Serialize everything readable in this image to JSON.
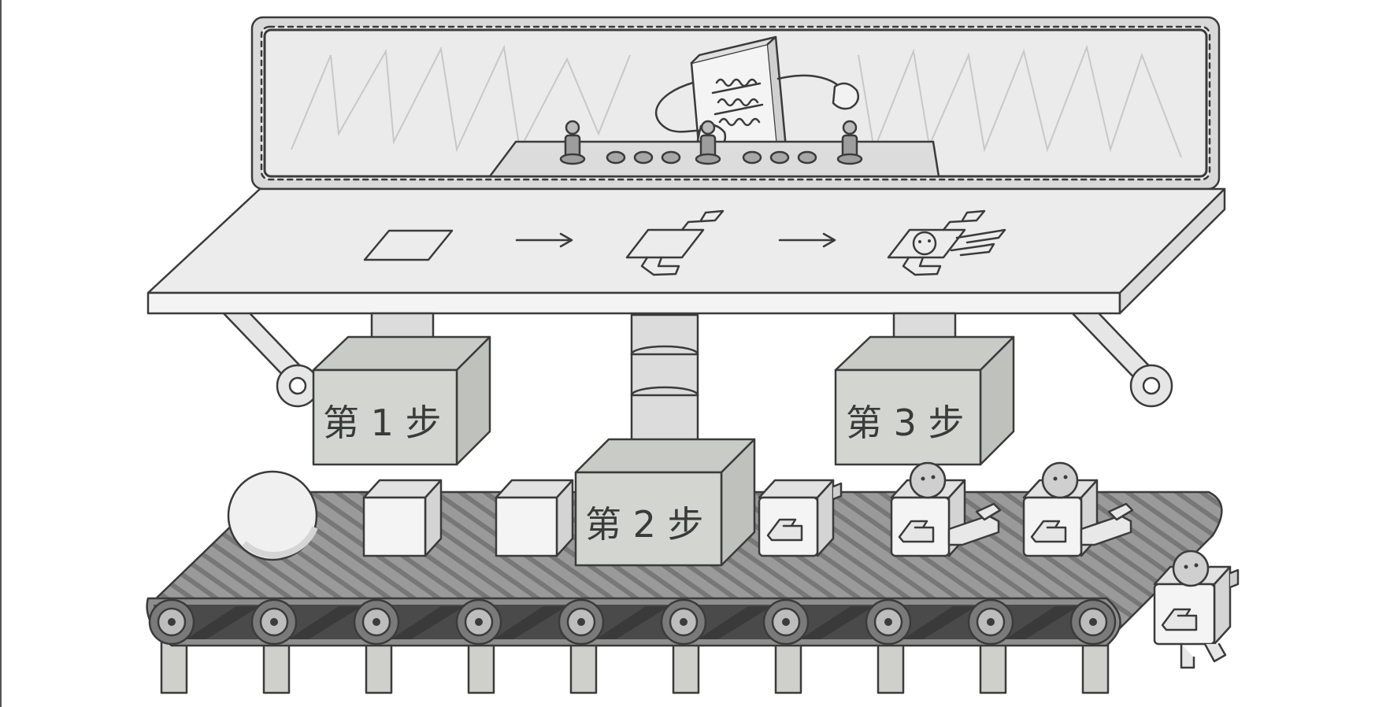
{
  "steps": [
    {
      "label": "第 1 步"
    },
    {
      "label": "第 2 步"
    },
    {
      "label": "第 3 步"
    }
  ],
  "colors": {
    "outline": "#3b3b3b",
    "panel": "#ededed",
    "block": "#d3d5d0",
    "belt": "#8e8e8e",
    "belt_stripe": "#6f6f6f",
    "roller": "#3e3e3e",
    "white": "#f5f5f5"
  },
  "icons": [
    "control-panel-robot-icon",
    "blueprint-square-icon",
    "arrow-right-icon",
    "blueprint-partial-robot-icon",
    "blueprint-full-robot-icon",
    "sphere-icon",
    "cube-icon",
    "robot-torso-icon",
    "robot-with-head-icon",
    "walking-robot-icon"
  ]
}
